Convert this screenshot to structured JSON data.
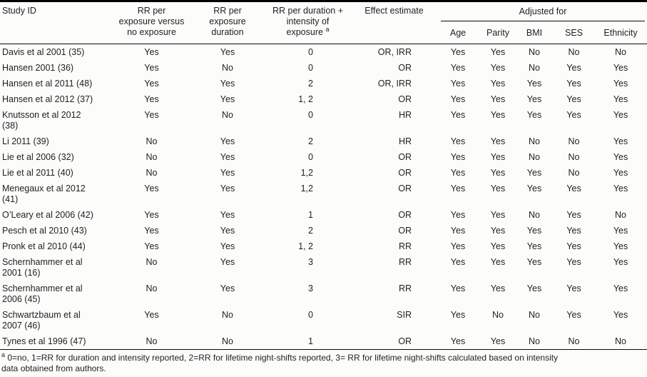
{
  "table": {
    "header": {
      "study_id": "Study ID",
      "rr_vs_no": "RR per\nexposure versus\nno exposure",
      "rr_duration": "RR per\nexposure\nduration",
      "rr_dur_intensity": "RR per duration +\nintensity of\nexposure",
      "rr_dur_intensity_marker": "a",
      "effect": "Effect estimate",
      "adjusted_for": "Adjusted for",
      "sub_columns": [
        "Age",
        "Parity",
        "BMI",
        "SES",
        "Ethnicity"
      ]
    },
    "rows": [
      {
        "study": "Davis et al 2001 (35)",
        "rr_vs_no": "Yes",
        "rr_duration": "Yes",
        "rr_dur_intensity": "0",
        "effect": "OR, IRR",
        "adjusted": [
          "Yes",
          "Yes",
          "No",
          "No",
          "No"
        ]
      },
      {
        "study": "Hansen 2001 (36)",
        "rr_vs_no": "Yes",
        "rr_duration": "No",
        "rr_dur_intensity": "0",
        "effect": "OR",
        "adjusted": [
          "Yes",
          "Yes",
          "No",
          "Yes",
          "Yes"
        ]
      },
      {
        "study": "Hansen et al 2011 (48)",
        "rr_vs_no": "Yes",
        "rr_duration": "Yes",
        "rr_dur_intensity": "2",
        "effect": "OR, IRR",
        "adjusted": [
          "Yes",
          "Yes",
          "Yes",
          "Yes",
          "Yes"
        ]
      },
      {
        "study": "Hansen et al 2012 (37)",
        "rr_vs_no": "Yes",
        "rr_duration": "Yes",
        "rr_dur_intensity": "1, 2",
        "effect": "OR",
        "adjusted": [
          "Yes",
          "Yes",
          "Yes",
          "Yes",
          "Yes"
        ]
      },
      {
        "study": "Knutsson et al 2012\n(38)",
        "rr_vs_no": "Yes",
        "rr_duration": "No",
        "rr_dur_intensity": "0",
        "effect": "HR",
        "adjusted": [
          "Yes",
          "Yes",
          "Yes",
          "Yes",
          "Yes"
        ]
      },
      {
        "study": "Li 2011 (39)",
        "rr_vs_no": "No",
        "rr_duration": "Yes",
        "rr_dur_intensity": "2",
        "effect": "HR",
        "adjusted": [
          "Yes",
          "Yes",
          "No",
          "No",
          "Yes"
        ]
      },
      {
        "study": "Lie et al 2006 (32)",
        "rr_vs_no": "No",
        "rr_duration": "Yes",
        "rr_dur_intensity": "0",
        "effect": "OR",
        "adjusted": [
          "Yes",
          "Yes",
          "No",
          "No",
          "Yes"
        ]
      },
      {
        "study": "Lie et al 2011 (40)",
        "rr_vs_no": "No",
        "rr_duration": "Yes",
        "rr_dur_intensity": "1,2",
        "effect": "OR",
        "adjusted": [
          "Yes",
          "Yes",
          "Yes",
          "No",
          "Yes"
        ]
      },
      {
        "study": "Menegaux et al 2012\n(41)",
        "rr_vs_no": "Yes",
        "rr_duration": "Yes",
        "rr_dur_intensity": "1,2",
        "effect": "OR",
        "adjusted": [
          "Yes",
          "Yes",
          "Yes",
          "Yes",
          "Yes"
        ]
      },
      {
        "study": "O’Leary et al 2006 (42)",
        "rr_vs_no": "Yes",
        "rr_duration": "Yes",
        "rr_dur_intensity": "1",
        "effect": "OR",
        "adjusted": [
          "Yes",
          "Yes",
          "No",
          "Yes",
          "No"
        ]
      },
      {
        "study": "Pesch et al 2010 (43)",
        "rr_vs_no": "Yes",
        "rr_duration": "Yes",
        "rr_dur_intensity": "2",
        "effect": "OR",
        "adjusted": [
          "Yes",
          "Yes",
          "Yes",
          "Yes",
          "Yes"
        ]
      },
      {
        "study": "Pronk et al 2010 (44)",
        "rr_vs_no": "Yes",
        "rr_duration": "Yes",
        "rr_dur_intensity": "1, 2",
        "effect": "RR",
        "adjusted": [
          "Yes",
          "Yes",
          "Yes",
          "Yes",
          "Yes"
        ]
      },
      {
        "study": "Schernhammer et al\n2001 (16)",
        "rr_vs_no": "No",
        "rr_duration": "Yes",
        "rr_dur_intensity": "3",
        "effect": "RR",
        "adjusted": [
          "Yes",
          "Yes",
          "Yes",
          "Yes",
          "Yes"
        ]
      },
      {
        "study": "Schernhammer et al\n2006 (45)",
        "rr_vs_no": "No",
        "rr_duration": "Yes",
        "rr_dur_intensity": "3",
        "effect": "RR",
        "adjusted": [
          "Yes",
          "Yes",
          "Yes",
          "Yes",
          "Yes"
        ]
      },
      {
        "study": "Schwartzbaum et al\n2007 (46)",
        "rr_vs_no": "Yes",
        "rr_duration": "No",
        "rr_dur_intensity": "0",
        "effect": "SIR",
        "adjusted": [
          "Yes",
          "No",
          "No",
          "Yes",
          "Yes"
        ]
      },
      {
        "study": "Tynes et al 1996 (47)",
        "rr_vs_no": "No",
        "rr_duration": "No",
        "rr_dur_intensity": "1",
        "effect": "OR",
        "adjusted": [
          "Yes",
          "Yes",
          "No",
          "No",
          "No"
        ]
      }
    ]
  },
  "footnote": {
    "marker": "a",
    "text": "0=no, 1=RR for duration and intensity reported, 2=RR for lifetime night-shifts reported, 3= RR for lifetime night-shifts calculated based on intensity\ndata obtained from authors."
  },
  "colors": {
    "text": "#1f1f1f",
    "rule": "#000000",
    "background": "#fcfcfb"
  }
}
